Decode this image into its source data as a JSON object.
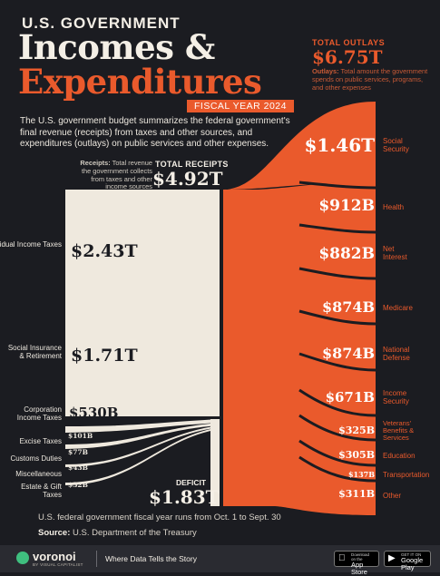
{
  "header": {
    "title_small": "U.S. GOVERNMENT",
    "title_line1": "Incomes &",
    "title_line2": "Expenditures",
    "fiscal_year": "FISCAL YEAR 2024",
    "intro": "The U.S. government budget summarizes the federal government's final revenue (receipts) from taxes and other sources, and expenditures (outlays) on public services and other expenses."
  },
  "outlays": {
    "header": "TOTAL OUTLAYS",
    "total": "$6.75T",
    "desc_bold": "Outlays:",
    "desc": " Total amount the government spends on public services, programs, and other expenses",
    "items": [
      {
        "value": "$1.46T",
        "label": "Social Security"
      },
      {
        "value": "$912B",
        "label": "Health"
      },
      {
        "value": "$882B",
        "label": "Net Interest"
      },
      {
        "value": "$874B",
        "label": "Medicare"
      },
      {
        "value": "$874B",
        "label": "National Defense"
      },
      {
        "value": "$671B",
        "label": "Income Security"
      },
      {
        "value": "$325B",
        "label": "Veterans' Benefits & Services"
      },
      {
        "value": "$305B",
        "label": "Education"
      },
      {
        "value": "$137B",
        "label": "Transportation"
      },
      {
        "value": "$311B",
        "label": "Other"
      }
    ]
  },
  "receipts": {
    "header": "TOTAL RECEIPTS",
    "total": "$4.92T",
    "desc_bold": "Receipts:",
    "desc": " Total revenue the government collects from taxes and other income sources",
    "items": [
      {
        "value": "$2.43T",
        "label": "Individual Income Taxes"
      },
      {
        "value": "$1.71T",
        "label": "Social Insurance & Retirement"
      },
      {
        "value": "$530B",
        "label": "Corporation Income Taxes"
      },
      {
        "value": "$101B",
        "label": "Excise Taxes"
      },
      {
        "value": "$77B",
        "label": "Customs Duties"
      },
      {
        "value": "$43B",
        "label": "Miscellaneous"
      },
      {
        "value": "$32B",
        "label": "Estate & Gift Taxes"
      }
    ]
  },
  "deficit": {
    "header": "DEFICIT",
    "total": "$1.83T"
  },
  "notes": {
    "fiscal_note": "U.S. federal government fiscal year runs from Oct. 1 to Sept. 30",
    "source_label": "Source:",
    "source": " U.S. Department of the Treasury"
  },
  "footer": {
    "brand": "voronoi",
    "brand_sub": "BY VISUAL CAPITALIST",
    "tagline": "Where Data Tells the Story",
    "app_store_small": "Download on the",
    "app_store": "App Store",
    "play_small": "GET IT ON",
    "play": "Google Play"
  },
  "colors": {
    "background": "#1b1c21",
    "receipts": "#efe9de",
    "outlays": "#ea5a2c",
    "footer": "#2a2b31"
  }
}
